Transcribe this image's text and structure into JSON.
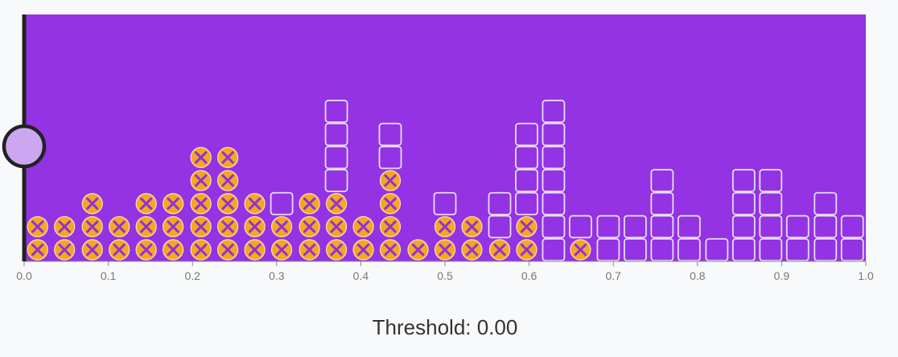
{
  "threshold": {
    "label_prefix": "Threshold: ",
    "value": 0.0,
    "display": "0.00"
  },
  "colors": {
    "background": "#9333e3",
    "circle_fill": "#f5a623",
    "cross": "#8e33d4",
    "square_stroke": "#e8dcf7",
    "axis": "#222222",
    "handle_fill": "#cda6f2"
  },
  "chart_data": {
    "type": "dot-histogram",
    "title": "",
    "x_axis": {
      "min": 0.0,
      "max": 1.0,
      "ticks": [
        "0.0",
        "0.1",
        "0.2",
        "0.3",
        "0.4",
        "0.5",
        "0.6",
        "0.7",
        "0.8",
        "0.9",
        "1.0"
      ]
    },
    "legend": "none",
    "grid": false,
    "markers": {
      "circle_with_x": "circle-x-icon",
      "square": "square-icon"
    },
    "bins": [
      {
        "x": 0.016,
        "circles": 2,
        "squares": 0
      },
      {
        "x": 0.048,
        "circles": 2,
        "squares": 0
      },
      {
        "x": 0.081,
        "circles": 3,
        "squares": 0
      },
      {
        "x": 0.113,
        "circles": 2,
        "squares": 0
      },
      {
        "x": 0.145,
        "circles": 3,
        "squares": 0
      },
      {
        "x": 0.177,
        "circles": 3,
        "squares": 0
      },
      {
        "x": 0.21,
        "circles": 5,
        "squares": 0
      },
      {
        "x": 0.242,
        "circles": 5,
        "squares": 0
      },
      {
        "x": 0.274,
        "circles": 3,
        "squares": 0
      },
      {
        "x": 0.306,
        "circles": 2,
        "squares": 1
      },
      {
        "x": 0.339,
        "circles": 3,
        "squares": 0
      },
      {
        "x": 0.371,
        "circles": 3,
        "squares": 4
      },
      {
        "x": 0.403,
        "circles": 2,
        "squares": 0
      },
      {
        "x": 0.435,
        "circles": 4,
        "squares": 2
      },
      {
        "x": 0.468,
        "circles": 1,
        "squares": 0
      },
      {
        "x": 0.5,
        "circles": 2,
        "squares": 1
      },
      {
        "x": 0.532,
        "circles": 2,
        "squares": 0
      },
      {
        "x": 0.565,
        "circles": 1,
        "squares": 2
      },
      {
        "x": 0.597,
        "circles": 2,
        "squares": 4
      },
      {
        "x": 0.629,
        "circles": 0,
        "squares": 7
      },
      {
        "x": 0.661,
        "circles": 1,
        "squares": 1
      },
      {
        "x": 0.694,
        "circles": 0,
        "squares": 2
      },
      {
        "x": 0.726,
        "circles": 0,
        "squares": 2
      },
      {
        "x": 0.758,
        "circles": 0,
        "squares": 4
      },
      {
        "x": 0.79,
        "circles": 0,
        "squares": 2
      },
      {
        "x": 0.823,
        "circles": 0,
        "squares": 1
      },
      {
        "x": 0.855,
        "circles": 0,
        "squares": 4
      },
      {
        "x": 0.887,
        "circles": 0,
        "squares": 4
      },
      {
        "x": 0.919,
        "circles": 0,
        "squares": 2
      },
      {
        "x": 0.952,
        "circles": 0,
        "squares": 3
      },
      {
        "x": 0.984,
        "circles": 0,
        "squares": 2
      }
    ]
  }
}
